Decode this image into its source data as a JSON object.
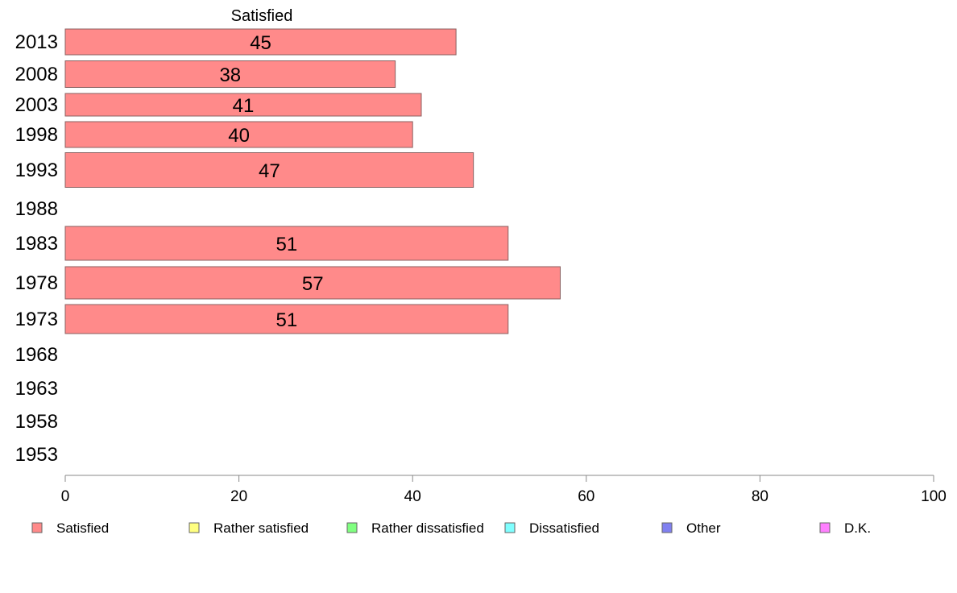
{
  "chart_data": {
    "type": "bar",
    "orientation": "horizontal",
    "header": "Satisfied",
    "categories": [
      "2013",
      "2008",
      "2003",
      "1998",
      "1993",
      "1988",
      "1983",
      "1978",
      "1973",
      "1968",
      "1963",
      "1958",
      "1953"
    ],
    "series": [
      {
        "name": "Satisfied",
        "color": "#ff8a8a",
        "values": [
          45,
          38,
          41,
          40,
          47,
          null,
          51,
          57,
          51,
          null,
          null,
          null,
          null
        ]
      }
    ],
    "xlim": [
      0,
      100
    ],
    "xticks": [
      0,
      20,
      40,
      60,
      80,
      100
    ],
    "grid": false,
    "legend_position": "bottom",
    "legend": [
      {
        "label": "Satisfied",
        "color": "#ff8a8a"
      },
      {
        "label": "Rather satisfied",
        "color": "#ffff80"
      },
      {
        "label": "Rather dissatisfied",
        "color": "#80ff80"
      },
      {
        "label": "Dissatisfied",
        "color": "#80ffff"
      },
      {
        "label": "Other",
        "color": "#8080f0"
      },
      {
        "label": "D.K.",
        "color": "#ff80ff"
      }
    ]
  }
}
